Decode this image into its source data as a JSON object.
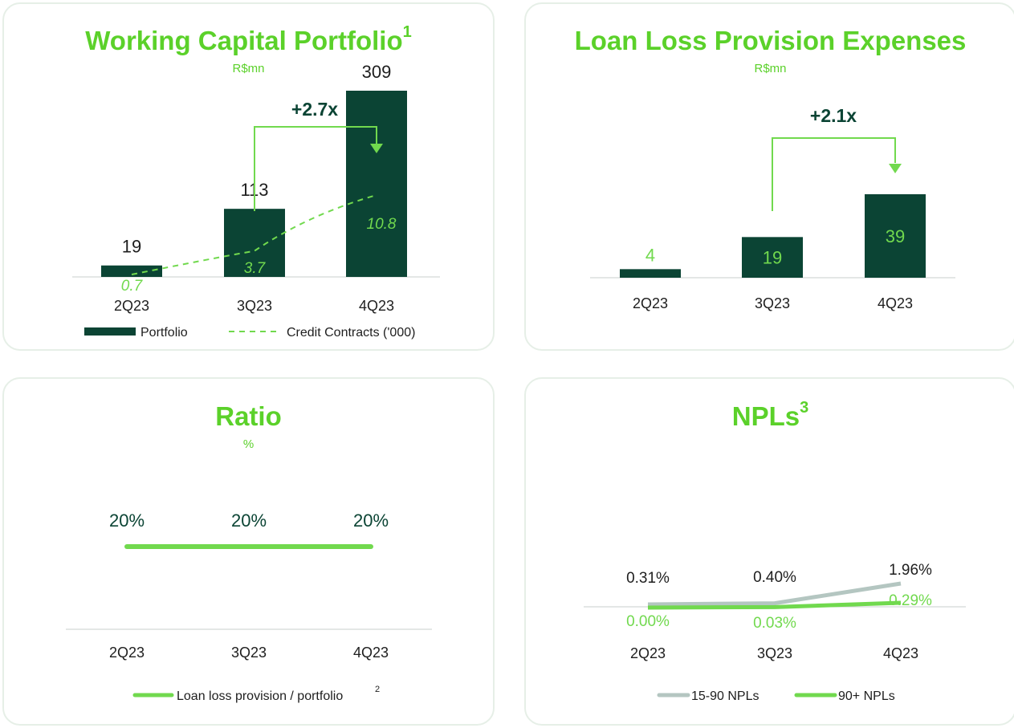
{
  "colors": {
    "dark": "#0b4434",
    "light": "#71d94e",
    "title": "#5bd12a",
    "grey": "#b4c6c1",
    "axis": "#c9cfcc"
  },
  "chart_data": [
    {
      "id": "wc",
      "type": "bar",
      "title": "Working Capital Portfolio",
      "title_sup": "1",
      "unit": "R$mn",
      "categories": [
        "2Q23",
        "3Q23",
        "4Q23"
      ],
      "series": [
        {
          "name": "Portfolio",
          "type": "bar",
          "values": [
            19,
            113,
            309
          ]
        },
        {
          "name": "Credit Contracts ('000)",
          "type": "line",
          "style": "dashed",
          "values": [
            0.7,
            3.7,
            10.8
          ]
        }
      ],
      "value_labels": [
        "19",
        "113",
        "309"
      ],
      "line_labels": [
        "0.7",
        "3.7",
        "10.8"
      ],
      "annotation": "+2.7x",
      "legend": [
        "Portfolio",
        "Credit Contracts ('000)"
      ]
    },
    {
      "id": "llp",
      "type": "bar",
      "title": "Loan Loss Provision Expenses",
      "unit": "R$mn",
      "categories": [
        "2Q23",
        "3Q23",
        "4Q23"
      ],
      "series": [
        {
          "name": "Loan Loss Provision Expenses",
          "values": [
            4,
            19,
            39
          ]
        }
      ],
      "value_labels": [
        "4",
        "19",
        "39"
      ],
      "annotation": "+2.1x"
    },
    {
      "id": "ratio",
      "type": "line",
      "title": "Ratio",
      "unit": "%",
      "categories": [
        "2Q23",
        "3Q23",
        "4Q23"
      ],
      "series": [
        {
          "name": "Loan loss provision / portfolio",
          "values": [
            20,
            20,
            20
          ]
        }
      ],
      "value_labels": [
        "20%",
        "20%",
        "20%"
      ],
      "legend": [
        "Loan loss provision / portfolio"
      ],
      "legend_sup": "2"
    },
    {
      "id": "npl",
      "type": "line",
      "title": "NPLs",
      "title_sup": "3",
      "categories": [
        "2Q23",
        "3Q23",
        "4Q23"
      ],
      "series": [
        {
          "name": "15-90 NPLs",
          "values": [
            0.31,
            0.4,
            1.96
          ],
          "labels": [
            "0.31%",
            "0.40%",
            "1.96%"
          ]
        },
        {
          "name": "90+ NPLs",
          "values": [
            0.0,
            0.03,
            0.29
          ],
          "labels": [
            "0.00%",
            "0.03%",
            "0.29%"
          ]
        }
      ],
      "legend": [
        "15-90 NPLs",
        "90+ NPLs"
      ]
    }
  ]
}
